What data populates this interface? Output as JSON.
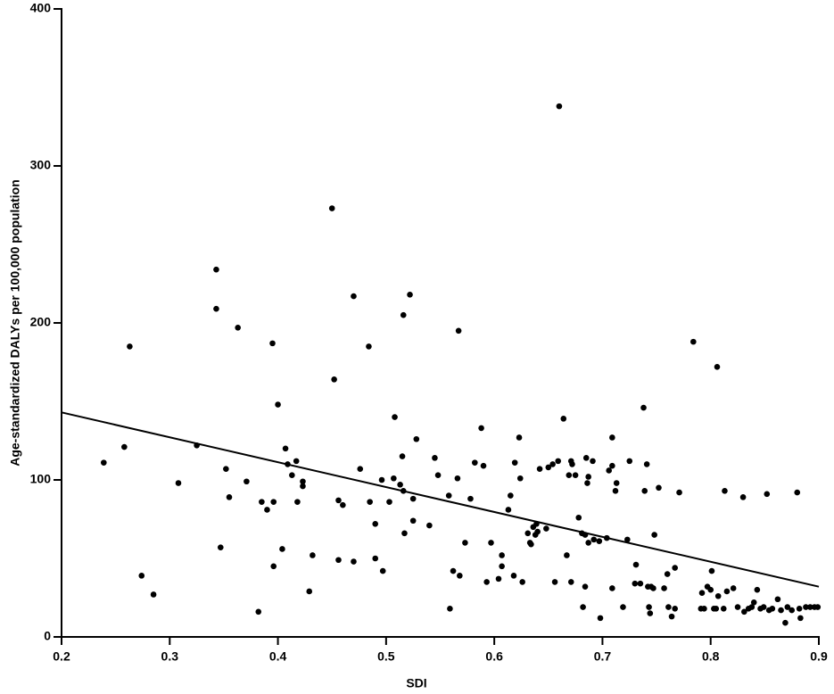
{
  "chart_data": {
    "type": "scatter",
    "x_label": "SDI",
    "y_label": "Age-standardized DALYs per 100,000 population",
    "xlim": [
      0.2,
      0.9
    ],
    "ylim": [
      0,
      400
    ],
    "xticks": [
      0.2,
      0.3,
      0.4,
      0.5,
      0.6,
      0.7,
      0.8,
      0.9
    ],
    "yticks": [
      0,
      100,
      200,
      300,
      400
    ],
    "color": "#000000",
    "x": [
      0.239,
      0.258,
      0.263,
      0.274,
      0.285,
      0.308,
      0.325,
      0.343,
      0.343,
      0.347,
      0.352,
      0.355,
      0.363,
      0.371,
      0.382,
      0.385,
      0.39,
      0.395,
      0.396,
      0.396,
      0.4,
      0.404,
      0.407,
      0.409,
      0.413,
      0.417,
      0.418,
      0.423,
      0.423,
      0.429,
      0.432,
      0.45,
      0.452,
      0.456,
      0.456,
      0.46,
      0.47,
      0.47,
      0.476,
      0.484,
      0.485,
      0.49,
      0.49,
      0.496,
      0.497,
      0.503,
      0.507,
      0.508,
      0.513,
      0.515,
      0.516,
      0.516,
      0.517,
      0.522,
      0.525,
      0.525,
      0.528,
      0.54,
      0.545,
      0.548,
      0.558,
      0.559,
      0.562,
      0.566,
      0.567,
      0.568,
      0.573,
      0.578,
      0.582,
      0.588,
      0.59,
      0.593,
      0.597,
      0.604,
      0.607,
      0.607,
      0.613,
      0.615,
      0.618,
      0.619,
      0.623,
      0.624,
      0.626,
      0.631,
      0.633,
      0.634,
      0.636,
      0.638,
      0.639,
      0.64,
      0.642,
      0.648,
      0.65,
      0.654,
      0.656,
      0.659,
      0.66,
      0.664,
      0.667,
      0.669,
      0.671,
      0.671,
      0.672,
      0.675,
      0.678,
      0.681,
      0.682,
      0.684,
      0.684,
      0.685,
      0.686,
      0.687,
      0.687,
      0.691,
      0.692,
      0.697,
      0.698,
      0.704,
      0.706,
      0.709,
      0.709,
      0.709,
      0.712,
      0.713,
      0.719,
      0.723,
      0.725,
      0.73,
      0.731,
      0.735,
      0.738,
      0.739,
      0.741,
      0.742,
      0.743,
      0.744,
      0.745,
      0.747,
      0.748,
      0.752,
      0.757,
      0.76,
      0.761,
      0.764,
      0.767,
      0.767,
      0.771,
      0.784,
      0.792,
      0.791,
      0.794,
      0.797,
      0.8,
      0.801,
      0.803,
      0.805,
      0.806,
      0.807,
      0.812,
      0.813,
      0.815,
      0.821,
      0.825,
      0.83,
      0.831,
      0.835,
      0.838,
      0.84,
      0.843,
      0.846,
      0.849,
      0.852,
      0.854,
      0.857,
      0.862,
      0.865,
      0.869,
      0.871,
      0.875,
      0.88,
      0.882,
      0.883,
      0.888,
      0.892,
      0.896,
      0.899
    ],
    "values": [
      111,
      121,
      185,
      39,
      27,
      98,
      122,
      234,
      209,
      57,
      107,
      89,
      197,
      99,
      16,
      86,
      81,
      187,
      86,
      45,
      148,
      56,
      120,
      110,
      103,
      112,
      86,
      99,
      96,
      29,
      52,
      273,
      164,
      87,
      49,
      84,
      217,
      48,
      107,
      185,
      86,
      72,
      50,
      100,
      42,
      86,
      101,
      140,
      97,
      115,
      205,
      93,
      66,
      218,
      88,
      74,
      126,
      71,
      114,
      103,
      90,
      18,
      42,
      101,
      195,
      39,
      60,
      88,
      111,
      133,
      109,
      35,
      60,
      37,
      52,
      45,
      81,
      90,
      39,
      111,
      127,
      101,
      35,
      66,
      60,
      59,
      70,
      65,
      72,
      67,
      107,
      69,
      108,
      110,
      35,
      112,
      338,
      139,
      52,
      103,
      35,
      112,
      110,
      103,
      76,
      66,
      19,
      65,
      32,
      114,
      98,
      102,
      60,
      112,
      62,
      61,
      12,
      63,
      106,
      109,
      127,
      31,
      93,
      98,
      19,
      62,
      112,
      34,
      46,
      34,
      146,
      93,
      110,
      32,
      19,
      15,
      32,
      31,
      65,
      95,
      31,
      40,
      19,
      13,
      44,
      18,
      92,
      188,
      28,
      18,
      18,
      32,
      30,
      42,
      18,
      18,
      172,
      26,
      18,
      93,
      29,
      31,
      19,
      89,
      16,
      18,
      19,
      22,
      30,
      18,
      19,
      91,
      17,
      18,
      24,
      17,
      9,
      19,
      17,
      92,
      18,
      12,
      19,
      19,
      19,
      19
    ],
    "trendline": {
      "x": [
        0.2,
        0.9
      ],
      "values": [
        143,
        32
      ]
    }
  }
}
